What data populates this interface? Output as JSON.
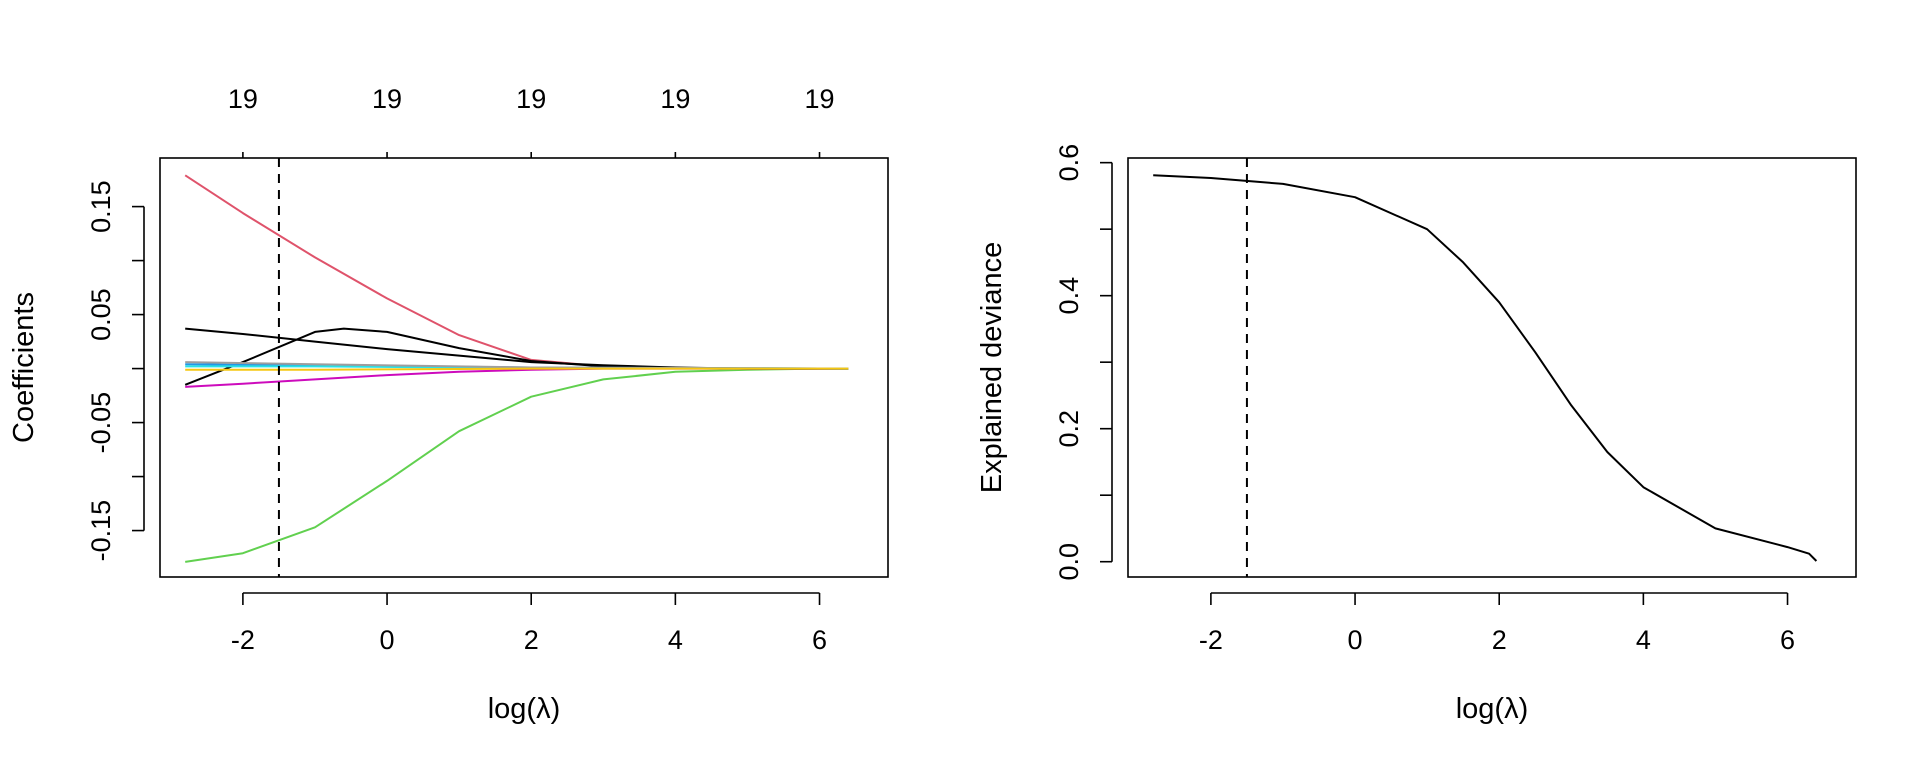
{
  "chart_data": [
    {
      "type": "line",
      "title": "",
      "xlabel": "log(λ)",
      "ylabel": "Coefficients",
      "xlim": [
        -3.15,
        6.95
      ],
      "ylim": [
        -0.193,
        0.195
      ],
      "x_ticks": [
        -2,
        0,
        2,
        4,
        6
      ],
      "x_tick_labels": [
        "-2",
        "0",
        "2",
        "4",
        "6"
      ],
      "y_ticks": [
        -0.15,
        -0.1,
        -0.05,
        0,
        0.05,
        0.1,
        0.15
      ],
      "y_tick_labels": [
        "-0.15",
        "",
        "-0.05",
        "",
        "0.05",
        "",
        "0.15"
      ],
      "top_ticks": [
        -2,
        0,
        2,
        4,
        6
      ],
      "top_tick_labels": [
        "19",
        "19",
        "19",
        "19",
        "19"
      ],
      "grid": false,
      "reference_line": {
        "x": -1.5,
        "style": "dashed"
      },
      "series": [
        {
          "color": "#DF536B",
          "x": [
            -2.8,
            -2,
            -1,
            0,
            1,
            2,
            3,
            4,
            5,
            6,
            6.4
          ],
          "y": [
            0.179,
            0.144,
            0.103,
            0.065,
            0.031,
            0.008,
            0.002,
            0.0005,
            0,
            0,
            0
          ]
        },
        {
          "color": "#61D04F",
          "x": [
            -2.8,
            -2,
            -1,
            0,
            1,
            2,
            3,
            4,
            5,
            6,
            6.4
          ],
          "y": [
            -0.179,
            -0.171,
            -0.147,
            -0.104,
            -0.058,
            -0.026,
            -0.01,
            -0.003,
            -0.001,
            0,
            0
          ]
        },
        {
          "color": "#000000",
          "x": [
            -2.8,
            -2,
            -1,
            -0.6,
            0,
            1,
            2,
            3,
            4,
            5,
            6,
            6.4
          ],
          "y": [
            -0.015,
            0.006,
            0.034,
            0.037,
            0.034,
            0.019,
            0.007,
            0.002,
            0.0005,
            0,
            0,
            0
          ]
        },
        {
          "color": "#000000",
          "x": [
            -2.8,
            -2,
            -1,
            0,
            1,
            2,
            3,
            4,
            5,
            6,
            6.4
          ],
          "y": [
            0.037,
            0.032,
            0.025,
            0.018,
            0.012,
            0.006,
            0.003,
            0.001,
            0,
            0,
            0
          ]
        },
        {
          "color": "#CD0BBC",
          "x": [
            -2.8,
            -2,
            -1,
            0,
            1,
            2,
            3,
            4,
            5,
            6,
            6.4
          ],
          "y": [
            -0.017,
            -0.014,
            -0.01,
            -0.006,
            -0.003,
            -0.001,
            0,
            0,
            0,
            0,
            0
          ]
        },
        {
          "color": "#2297E6",
          "x": [
            -2.8,
            -1,
            2,
            6.4
          ],
          "y": [
            0.004,
            0.003,
            0.001,
            0
          ]
        },
        {
          "color": "#28E2E5",
          "x": [
            -2.8,
            -1,
            2,
            6.4
          ],
          "y": [
            0.002,
            0.002,
            0.0005,
            0
          ]
        },
        {
          "color": "#9E9E9E",
          "x": [
            -2.8,
            -1,
            2,
            6.4
          ],
          "y": [
            0.006,
            0.004,
            0.001,
            0
          ]
        },
        {
          "color": "#F5C710",
          "x": [
            -2.8,
            -1,
            2,
            6.4
          ],
          "y": [
            -0.001,
            -0.001,
            0,
            0
          ]
        }
      ]
    },
    {
      "type": "line",
      "title": "",
      "xlabel": "log(λ)",
      "ylabel": "Explained deviance",
      "xlim": [
        -3.15,
        6.95
      ],
      "ylim": [
        -0.023,
        0.607
      ],
      "x_ticks": [
        -2,
        0,
        2,
        4,
        6
      ],
      "x_tick_labels": [
        "-2",
        "0",
        "2",
        "4",
        "6"
      ],
      "y_ticks": [
        0,
        0.1,
        0.2,
        0.3,
        0.4,
        0.5,
        0.6
      ],
      "y_tick_labels": [
        "0.0",
        "",
        "0.2",
        "",
        "0.4",
        "",
        "0.6"
      ],
      "grid": false,
      "reference_line": {
        "x": -1.5,
        "style": "dashed"
      },
      "series": [
        {
          "color": "#000000",
          "x": [
            -2.8,
            -2,
            -1,
            0,
            1,
            1.5,
            2,
            2.5,
            3,
            3.5,
            4,
            5,
            6,
            6.3,
            6.4
          ],
          "y": [
            0.581,
            0.577,
            0.568,
            0.548,
            0.5,
            0.45,
            0.39,
            0.315,
            0.235,
            0.165,
            0.112,
            0.05,
            0.022,
            0.012,
            0.001
          ]
        }
      ]
    }
  ]
}
